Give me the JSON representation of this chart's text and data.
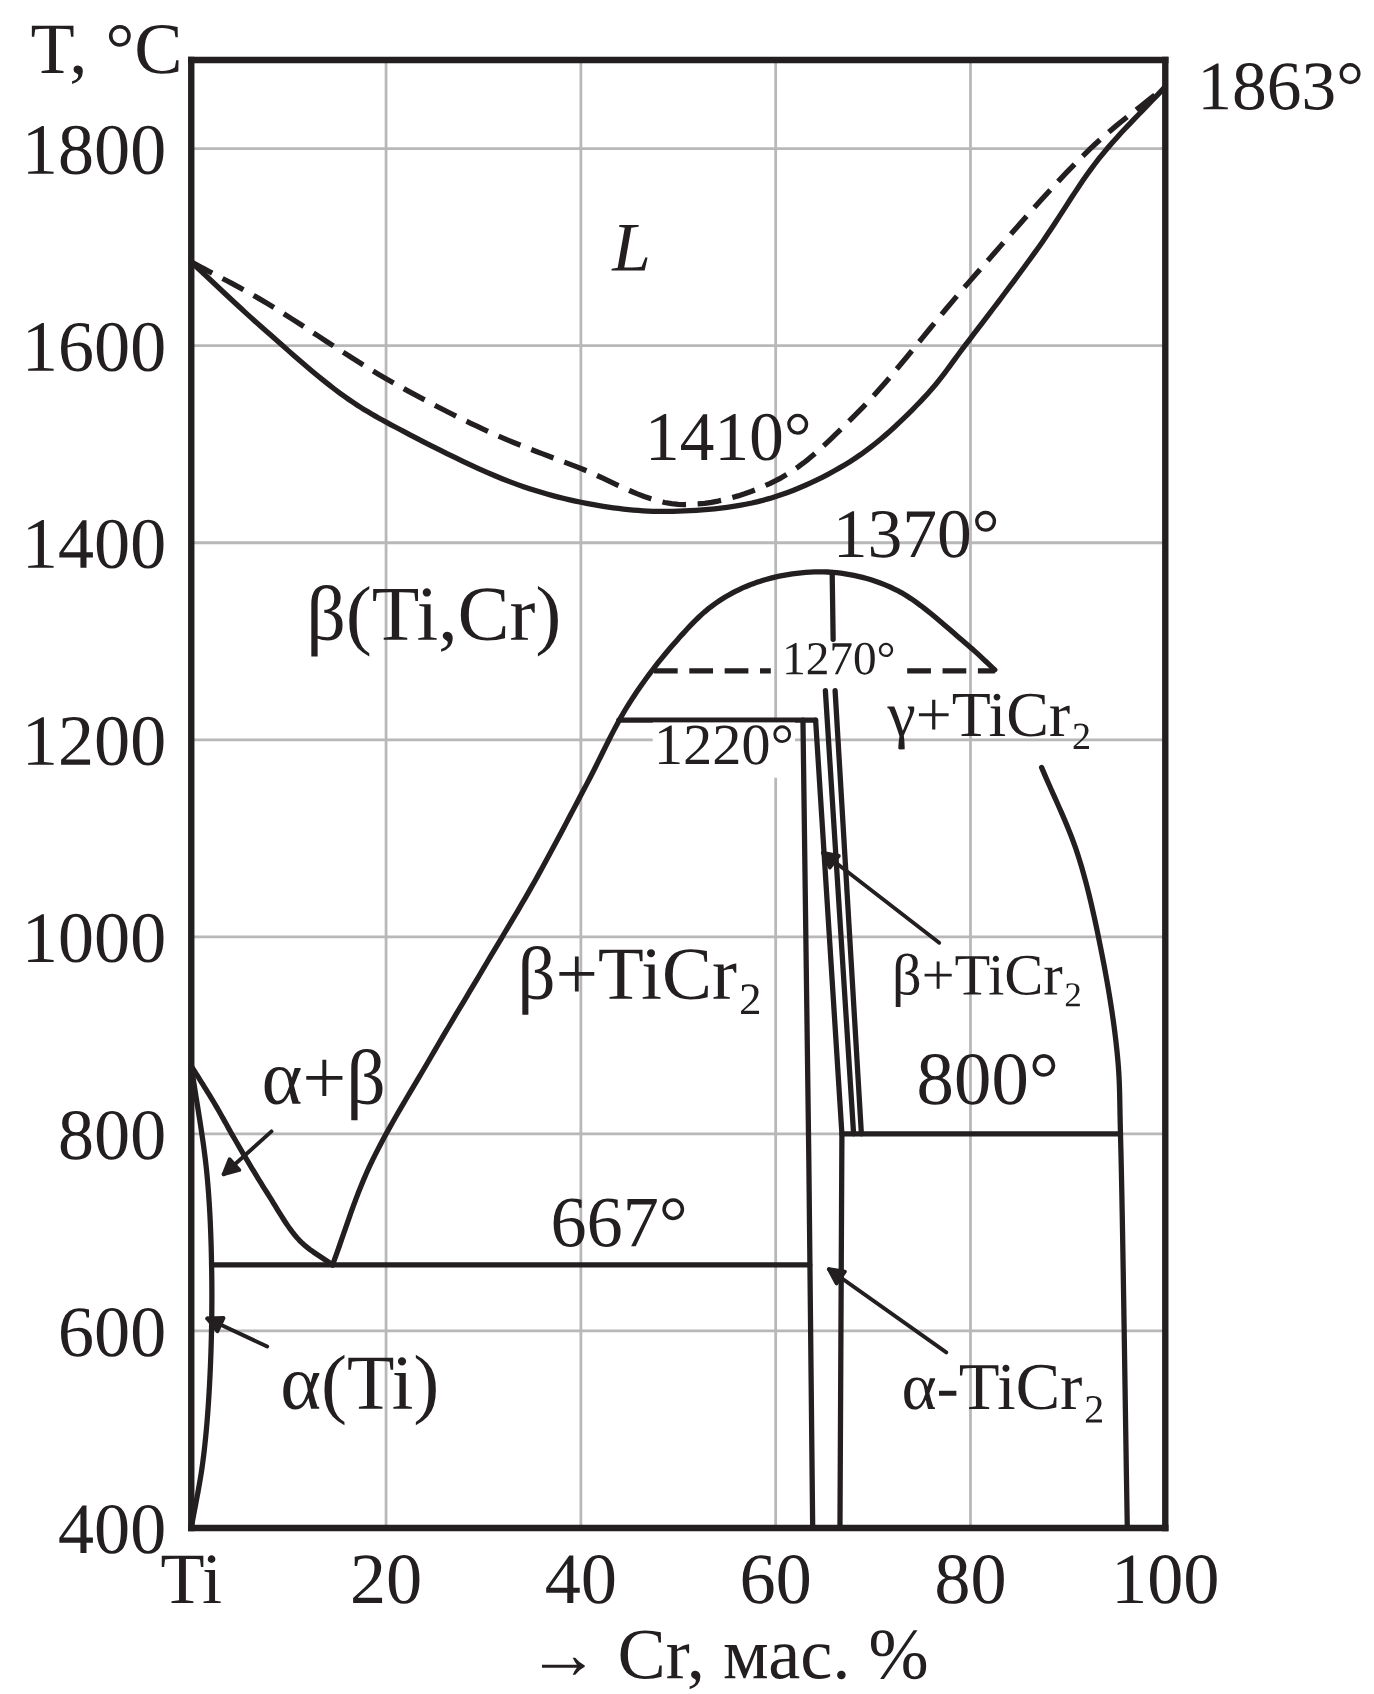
{
  "chart_data": {
    "type": "line",
    "xlabel": "→ Cr, мас. %",
    "ylabel": "T, °C",
    "xlim": [
      0,
      100
    ],
    "xticks": [
      {
        "value": 0,
        "label": "Ti"
      },
      20,
      40,
      60,
      80,
      100
    ],
    "ylim": [
      400,
      1890
    ],
    "yticks": [
      400,
      600,
      800,
      1000,
      1200,
      1400,
      1600,
      1800
    ],
    "grid": true,
    "line_style": "solid",
    "series": [
      {
        "color": "#231f20",
        "x": [
          0,
          7.1,
          15.8,
          21.8,
          33.5,
          42.3,
          50,
          59.4,
          68.2,
          75.3,
          79.5,
          87,
          93.2,
          100
        ],
        "values": [
          1685,
          1620,
          1548,
          1513,
          1459,
          1437,
          1432,
          1445,
          1486,
          1548,
          1601,
          1700,
          1790,
          1863
        ]
      },
      {
        "color": "#231f20",
        "line_style": "dashed",
        "x": [
          0,
          7.1,
          20.1,
          30.7,
          39.6,
          50,
          60,
          68.2,
          79.8,
          92.2,
          100
        ],
        "values": [
          1685,
          1647,
          1566,
          1512,
          1477,
          1439,
          1463,
          1530,
          1664,
          1799,
          1863
        ]
      },
      {
        "color": "#231f20",
        "x": [
          0,
          2.5,
          4.5,
          7.8,
          11.1,
          14.5
        ],
        "values": [
          869,
          829,
          794,
          740,
          692,
          667
        ]
      },
      {
        "color": "#231f20",
        "x": [
          0,
          1.6,
          2.1,
          1.9,
          1.2,
          0
        ],
        "values": [
          869,
          760,
          659,
          550,
          468,
          400
        ]
      },
      {
        "color": "#231f20",
        "x": [
          2.1,
          63.5
        ],
        "values": [
          667,
          667
        ]
      },
      {
        "color": "#231f20",
        "x": [
          14.5,
          18.3,
          24.6,
          30.0,
          35.3,
          40.6,
          44.9,
          49.6,
          53.9,
          59.1,
          65.8,
          72.4,
          79.5,
          82.5,
          85,
          87.3,
          91.0,
          93.6,
          95.1,
          95.4,
          96.1
        ],
        "values": [
          667,
          767,
          878,
          968,
          1057,
          1155,
          1236,
          1298,
          1339,
          1363,
          1370,
          1352,
          1298,
          1271,
          null,
          1172,
          1084,
          977,
          878,
          800,
          400
        ]
      },
      {
        "color": "#231f20",
        "line_style": "dashed",
        "x": [
          47.5,
          59.5,
          66.5,
          73.5,
          82.5
        ],
        "values": [
          1270,
          1270,
          null,
          1270,
          1270
        ]
      },
      {
        "color": "#231f20",
        "x": [
          43.9,
          64.1
        ],
        "values": [
          1220,
          1220
        ]
      },
      {
        "color": "#231f20",
        "x": [
          62.8,
          63.4,
          63.8
        ],
        "values": [
          1220,
          777,
          400
        ]
      },
      {
        "color": "#231f20",
        "x": [
          64.1,
          66.8,
          66.6
        ],
        "values": [
          1220,
          800,
          400
        ]
      },
      {
        "color": "#231f20",
        "x": [
          65.1,
          68.0
        ],
        "values": [
          1250,
          800
        ]
      },
      {
        "color": "#231f20",
        "x": [
          65.8,
          65.9,
          66.0,
          66.1,
          68.8
        ],
        "values": [
          1370,
          1302,
          null,
          1250,
          800
        ]
      },
      {
        "color": "#231f20",
        "x": [
          66.8,
          95.4
        ],
        "values": [
          800,
          800
        ]
      }
    ],
    "annotations": [
      "L",
      {
        "text": "1410°",
        "x": 50,
        "y": 1432
      },
      {
        "text": "1863°",
        "x": 100,
        "y": 1863
      },
      {
        "text": "1370°",
        "x": 65.8,
        "y": 1370
      },
      "β(Ti,Cr)",
      {
        "text": "1270°",
        "x": 59.5,
        "y": 1270
      },
      "γ+TiCr₂",
      {
        "text": "1220°",
        "x": 55.3,
        "y": 1220
      },
      "β+TiCr₂",
      {
        "text": "β+TiCr₂",
        "x": 64.5,
        "y": 1088
      },
      {
        "text": "800°",
        "x": 79.3,
        "y": 800
      },
      "α+β",
      {
        "text": "667°",
        "x": 42.9,
        "y": 667
      },
      "α(Ti)",
      "α-TiCr₂"
    ]
  }
}
